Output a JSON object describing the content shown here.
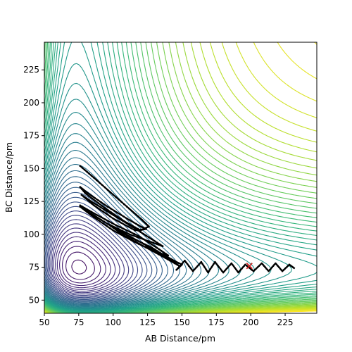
{
  "chart_data": {
    "type": "contour",
    "xlabel": "AB Distance/pm",
    "ylabel": "BC Distance/pm",
    "xlim": [
      50,
      248
    ],
    "ylim": [
      40,
      246
    ],
    "xticks": [
      50,
      75,
      100,
      125,
      150,
      175,
      200,
      225
    ],
    "yticks": [
      50,
      75,
      100,
      125,
      150,
      175,
      200,
      225
    ],
    "grid": false,
    "legend": "none",
    "colormap": [
      "#440154",
      "#482878",
      "#3e4989",
      "#31688e",
      "#26828e",
      "#1f9e89",
      "#35b779",
      "#6ece58",
      "#b5de2b",
      "#fde725"
    ],
    "trajectory": {
      "color": "#000000",
      "marker_color": "#cc2222",
      "marker": [
        199,
        76
      ],
      "points": [
        [
          76,
          152
        ],
        [
          86,
          143
        ],
        [
          98,
          132
        ],
        [
          110,
          121
        ],
        [
          120,
          112
        ],
        [
          126,
          106
        ],
        [
          120,
          103
        ],
        [
          108,
          110
        ],
        [
          94,
          120
        ],
        [
          80,
          131
        ],
        [
          76,
          136
        ],
        [
          82,
          131
        ],
        [
          96,
          121
        ],
        [
          110,
          112
        ],
        [
          120,
          106
        ],
        [
          124,
          104
        ],
        [
          116,
          103
        ],
        [
          100,
          112
        ],
        [
          86,
          122
        ],
        [
          77,
          130
        ],
        [
          84,
          125
        ],
        [
          98,
          116
        ],
        [
          112,
          107
        ],
        [
          124,
          99
        ],
        [
          136,
          91
        ],
        [
          128,
          94
        ],
        [
          112,
          100
        ],
        [
          96,
          108
        ],
        [
          82,
          117
        ],
        [
          76,
          122
        ],
        [
          86,
          116
        ],
        [
          102,
          107
        ],
        [
          118,
          99
        ],
        [
          130,
          91
        ],
        [
          140,
          84
        ],
        [
          132,
          86
        ],
        [
          116,
          94
        ],
        [
          100,
          103
        ],
        [
          86,
          113
        ],
        [
          76,
          121
        ],
        [
          88,
          113
        ],
        [
          104,
          103
        ],
        [
          120,
          94
        ],
        [
          134,
          86
        ],
        [
          146,
          79
        ],
        [
          140,
          82
        ],
        [
          128,
          90
        ],
        [
          114,
          97
        ],
        [
          102,
          104
        ],
        [
          96,
          108
        ],
        [
          108,
          99
        ],
        [
          124,
          90
        ],
        [
          138,
          82
        ],
        [
          148,
          76
        ],
        [
          144,
          79
        ],
        [
          132,
          86
        ],
        [
          124,
          91
        ],
        [
          136,
          84
        ],
        [
          150,
          77
        ],
        [
          146,
          73
        ],
        [
          152,
          80
        ],
        [
          158,
          72
        ],
        [
          164,
          79
        ],
        [
          169,
          71
        ],
        [
          174,
          79
        ],
        [
          180,
          71
        ],
        [
          186,
          78
        ],
        [
          191,
          71
        ],
        [
          196,
          77
        ],
        [
          202,
          72
        ],
        [
          208,
          78
        ],
        [
          213,
          72
        ],
        [
          218,
          78
        ],
        [
          223,
          72
        ],
        [
          228,
          77
        ],
        [
          232,
          74
        ]
      ]
    }
  }
}
